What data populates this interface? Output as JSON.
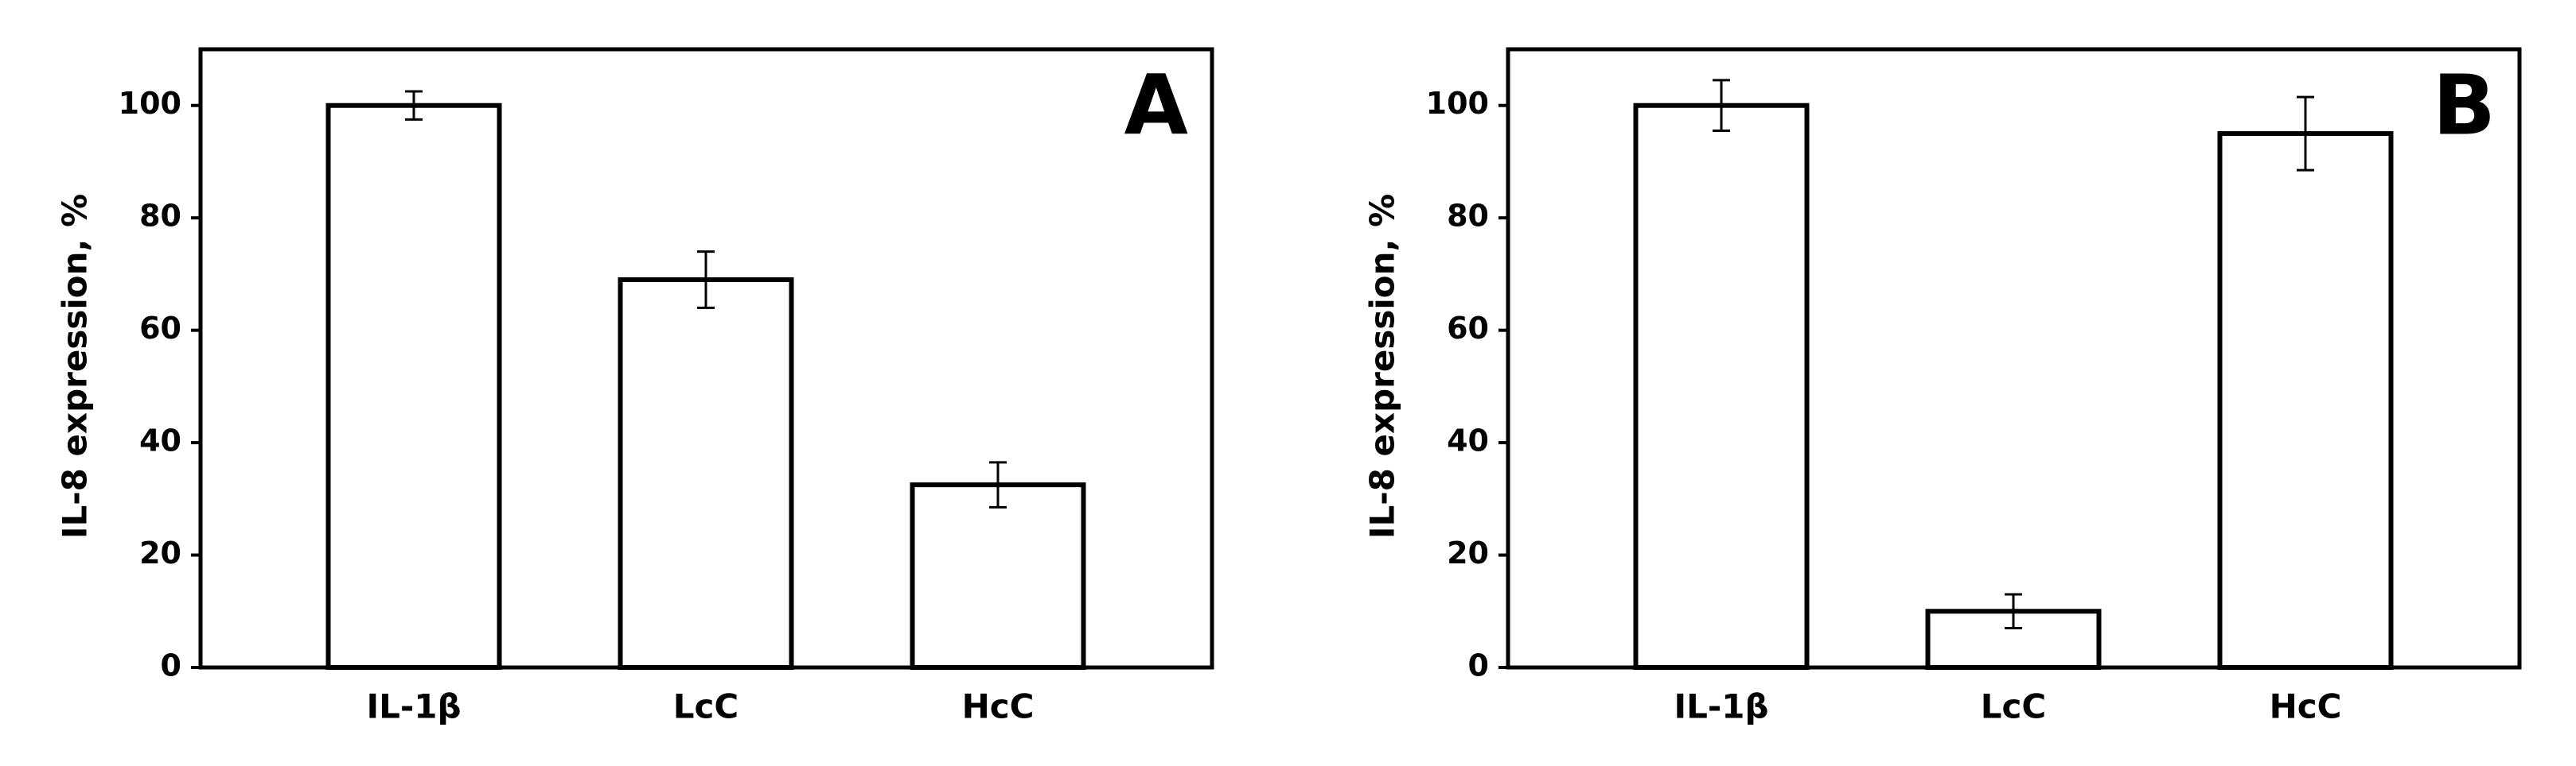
{
  "chart_data": [
    {
      "type": "bar",
      "panel_label": "A",
      "ylabel": "IL-8 expression, %",
      "categories": [
        "IL-1β",
        "LcC",
        "HcC"
      ],
      "values": [
        100,
        69,
        32.5
      ],
      "errors": [
        2.5,
        5,
        4
      ],
      "color": "#ffffff",
      "edgecolor": "#000000",
      "ylim": [
        0,
        110
      ],
      "yticks": [
        0,
        20,
        40,
        60,
        80,
        100
      ]
    },
    {
      "type": "bar",
      "panel_label": "B",
      "ylabel": "IL-8 expression, %",
      "categories": [
        "IL-1β",
        "LcC",
        "HcC"
      ],
      "values": [
        100,
        10,
        95
      ],
      "errors": [
        4.5,
        3,
        6.5
      ],
      "color": "#ffffff",
      "edgecolor": "#000000",
      "ylim": [
        0,
        110
      ],
      "yticks": [
        0,
        20,
        40,
        60,
        80,
        100
      ]
    }
  ]
}
